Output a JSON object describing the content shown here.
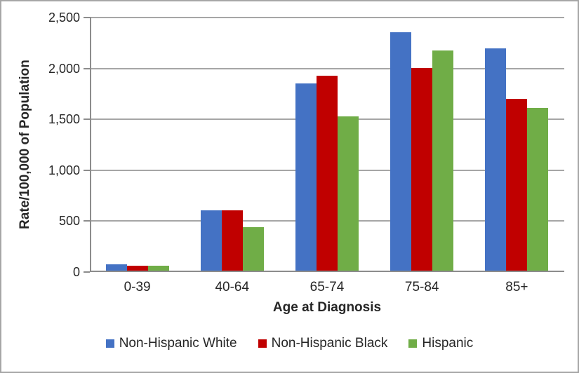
{
  "chart_data": {
    "type": "bar",
    "categories": [
      "0-39",
      "40-64",
      "65-74",
      "75-84",
      "85+"
    ],
    "series": [
      {
        "name": "Non-Hispanic White",
        "color": "#4472C4",
        "values": [
          60,
          595,
          1840,
          2340,
          2185
        ]
      },
      {
        "name": "Non-Hispanic Black",
        "color": "#C00000",
        "values": [
          45,
          590,
          1915,
          1990,
          1685
        ]
      },
      {
        "name": "Hispanic",
        "color": "#70AD47",
        "values": [
          50,
          430,
          1515,
          2165,
          1600
        ]
      }
    ],
    "xlabel": "Age at Diagnosis",
    "ylabel": "Rate/100,000 of Population",
    "ylim": [
      0,
      2500
    ],
    "ytick_values": [
      0,
      500,
      1000,
      1500,
      2000,
      2500
    ],
    "ytick_labels": [
      "0",
      "500",
      "1,000",
      "1,500",
      "2,000",
      "2,500"
    ],
    "grid": true,
    "legend_position": "bottom"
  },
  "colors": {
    "axis": "#8C8C8C",
    "gridline": "#A6A6A6",
    "frame_border": "#A6A6A6",
    "text": "#262626"
  }
}
